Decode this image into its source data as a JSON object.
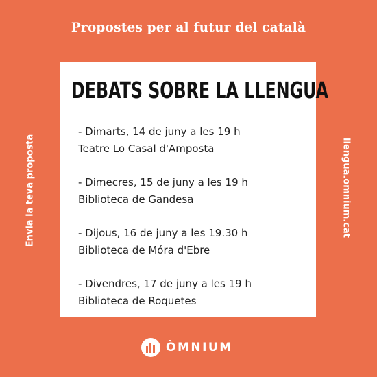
{
  "header": {
    "title": "Propostes per al futur del català"
  },
  "card": {
    "headline": "DEBATS SOBRE LA LLENGUA",
    "events": [
      {
        "date": "- Dimarts, 14 de juny a les 19 h",
        "venue": "Teatre Lo Casal d'Amposta"
      },
      {
        "date": "- Dimecres, 15 de juny a les 19 h",
        "venue": "Biblioteca de Gandesa"
      },
      {
        "date": "- Dijous, 16 de juny a les 19.30 h",
        "venue": "Biblioteca de Móra d'Ebre"
      },
      {
        "date": "- Divendres, 17 de juny a les 19 h",
        "venue": "Biblioteca de Roquetes"
      }
    ]
  },
  "side": {
    "left_text": "Envia la teva proposta",
    "right_text": "llengua.omnium.cat"
  },
  "brand": {
    "name": "ÒMNIUM",
    "icon": "omnium-logo-icon"
  },
  "colors": {
    "background": "#ec6f4b",
    "card": "#ffffff",
    "text": "#222222"
  }
}
